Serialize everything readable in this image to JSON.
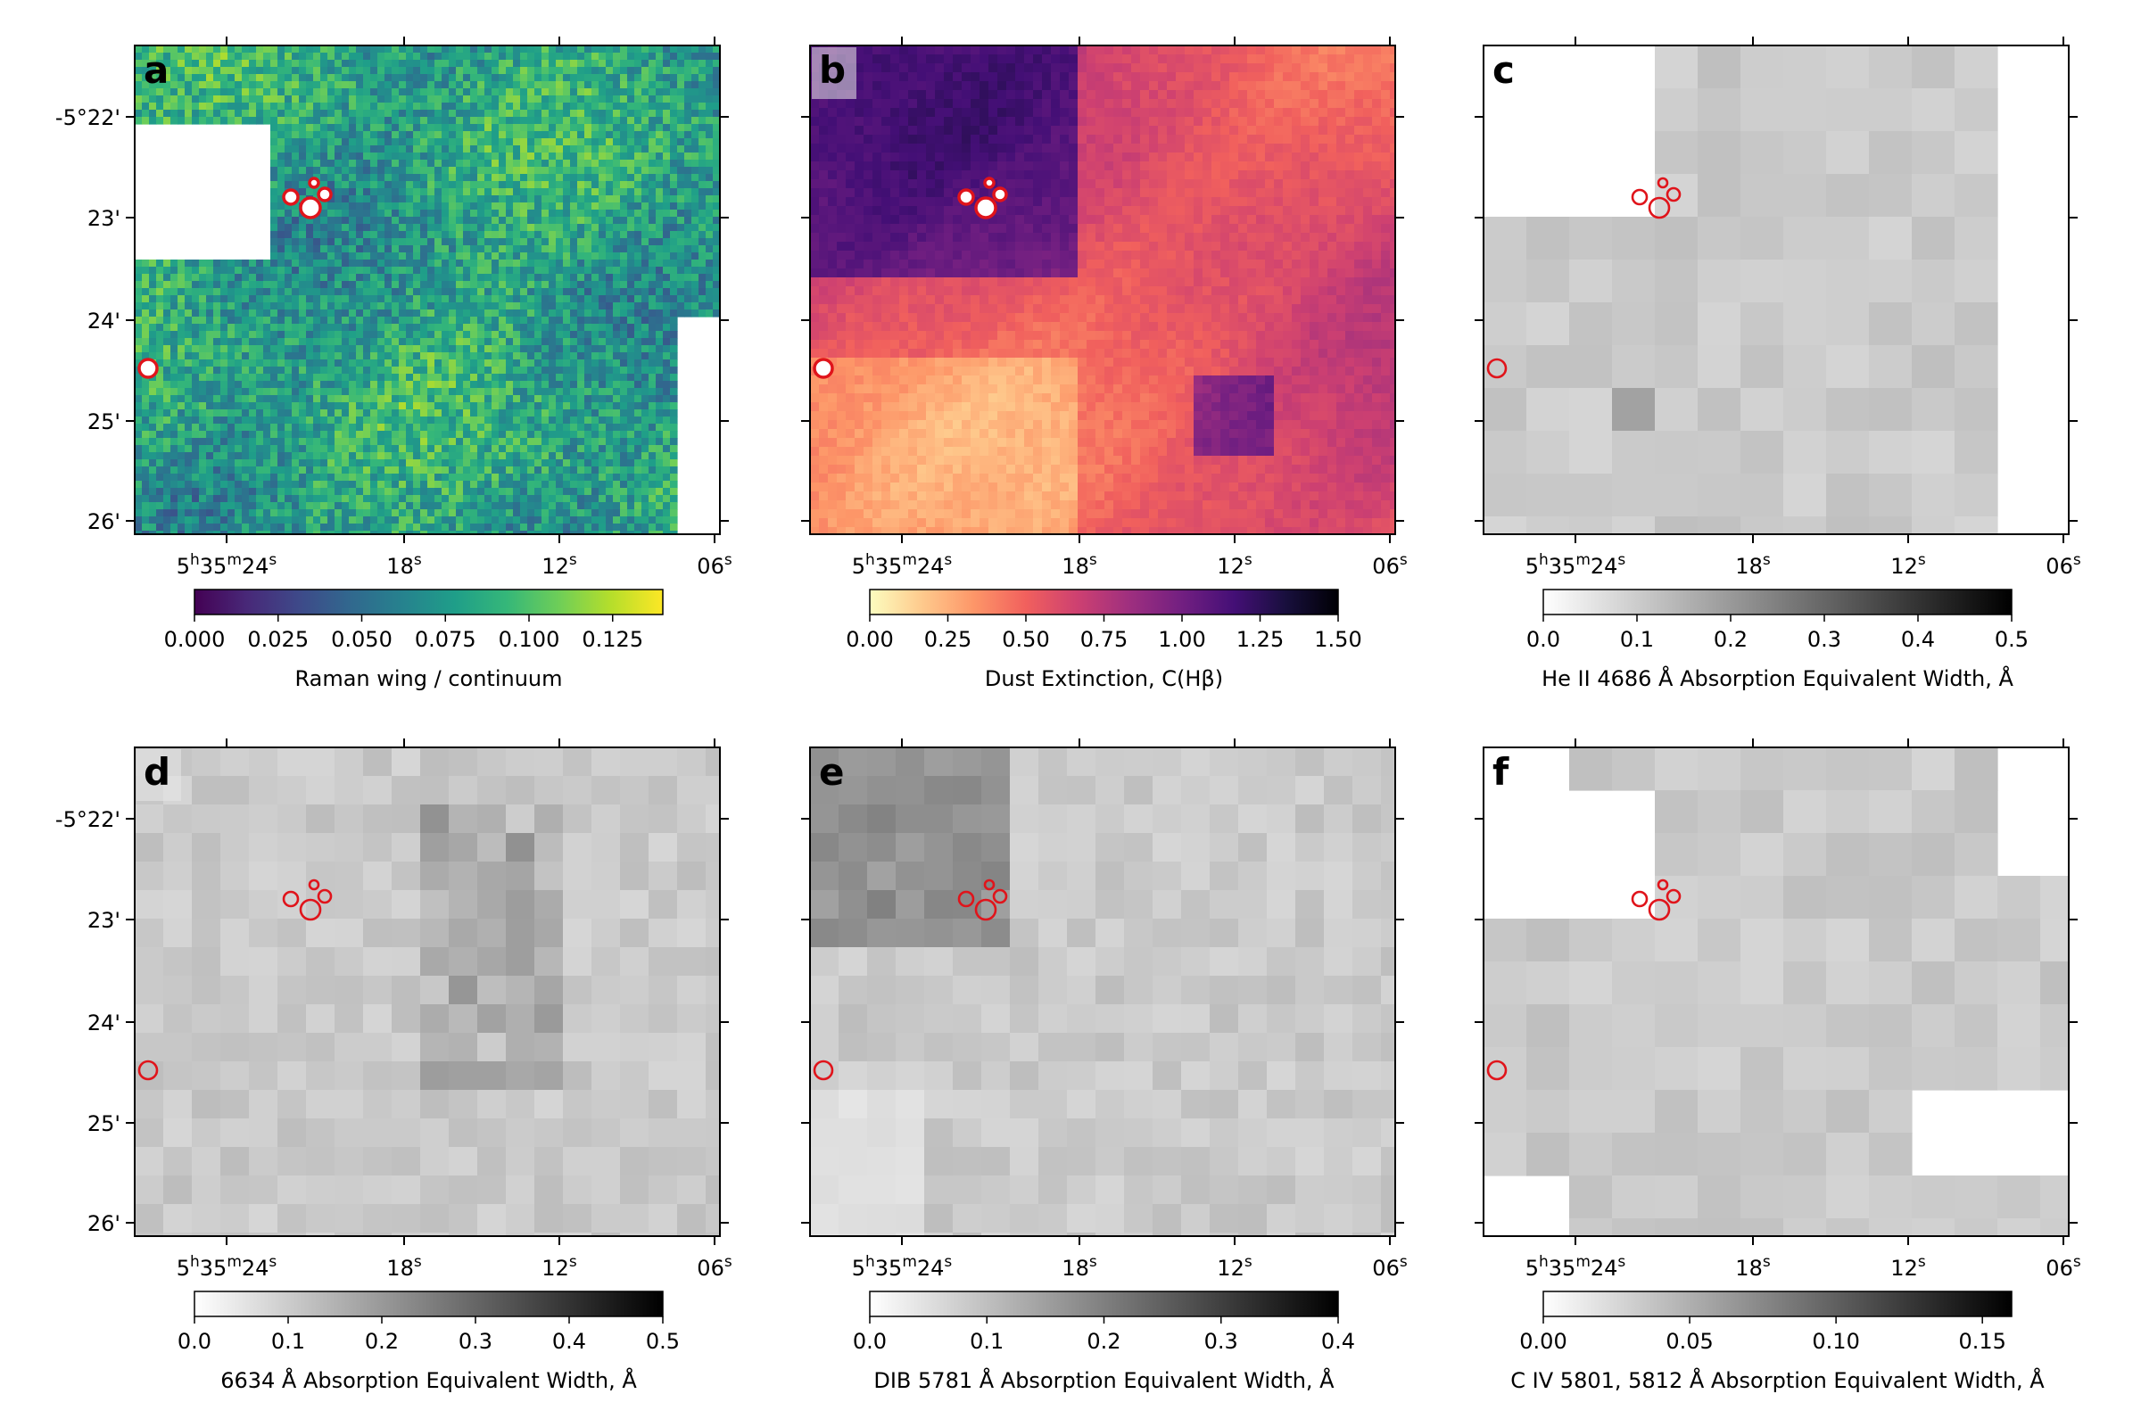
{
  "figure": {
    "type": "multi-panel astronomical maps",
    "rows": 2,
    "cols": 3,
    "panels_order_note": "a-c top row, d-f bottom row"
  },
  "chart_data": [
    {
      "type": "heatmap",
      "panel_label": "a",
      "colormap": "viridis",
      "colorbar_label": "Raman wing / continuum",
      "colorbar_ticks": [
        "0.000",
        "0.025",
        "0.050",
        "0.075",
        "0.100",
        "0.125"
      ],
      "colorbar_range": [
        0,
        0.14
      ],
      "y_ticks": [
        "-5°22'",
        "23'",
        "24'",
        "25'",
        "26'"
      ],
      "x_ticks": [
        "5h35m24s",
        "18s",
        "12s",
        "06s"
      ],
      "texture": "fine",
      "markers": "red circles filled white"
    },
    {
      "type": "heatmap",
      "panel_label": "b",
      "colormap": "magma_r",
      "colorbar_label": "Dust Extinction, C(Hβ)",
      "colorbar_ticks": [
        "0.00",
        "0.25",
        "0.50",
        "0.75",
        "1.00",
        "1.25",
        "1.50"
      ],
      "colorbar_range": [
        0,
        1.5
      ],
      "y_ticks": [
        "-5°22'",
        "23'",
        "24'",
        "25'",
        "26'"
      ],
      "x_ticks": [
        "5h35m24s",
        "18s",
        "12s",
        "06s"
      ],
      "texture": "smooth",
      "markers": "red circles filled white"
    },
    {
      "type": "heatmap",
      "panel_label": "c",
      "colormap": "gray_r",
      "colorbar_label": "He II 4686 Å Absorption Equivalent Width, Å",
      "colorbar_ticks": [
        "0.0",
        "0.1",
        "0.2",
        "0.3",
        "0.4",
        "0.5"
      ],
      "colorbar_range": [
        0,
        0.5
      ],
      "y_ticks": [
        "-5°22'",
        "23'",
        "24'",
        "25'",
        "26'"
      ],
      "x_ticks": [
        "5h35m24s",
        "18s",
        "12s",
        "06s"
      ],
      "texture": "coarse bins",
      "markers": "red open circles"
    },
    {
      "type": "heatmap",
      "panel_label": "d",
      "colormap": "gray_r",
      "colorbar_label": "6634 Å Absorption Equivalent Width, Å",
      "colorbar_ticks": [
        "0.0",
        "0.1",
        "0.2",
        "0.3",
        "0.4",
        "0.5"
      ],
      "colorbar_range": [
        0,
        0.5
      ],
      "y_ticks": [
        "-5°22'",
        "23'",
        "24'",
        "25'",
        "26'"
      ],
      "x_ticks": [
        "5h35m24s",
        "18s",
        "12s",
        "06s"
      ],
      "texture": "mixed bins",
      "markers": "red open circles"
    },
    {
      "type": "heatmap",
      "panel_label": "e",
      "colormap": "gray_r",
      "colorbar_label": "DIB 5781 Å Absorption Equivalent Width, Å",
      "colorbar_ticks": [
        "0.0",
        "0.1",
        "0.2",
        "0.3",
        "0.4"
      ],
      "colorbar_range": [
        0,
        0.4
      ],
      "y_ticks": [
        "-5°22'",
        "23'",
        "24'",
        "25'",
        "26'"
      ],
      "x_ticks": [
        "5h35m24s",
        "18s",
        "12s",
        "06s"
      ],
      "texture": "mixed bins",
      "markers": "red open circles"
    },
    {
      "type": "heatmap",
      "panel_label": "f",
      "colormap": "gray_r",
      "colorbar_label": "C IV 5801, 5812 Å Absorption Equivalent Width, Å",
      "colorbar_ticks": [
        "0.00",
        "0.05",
        "0.10",
        "0.15"
      ],
      "colorbar_range": [
        0,
        0.16
      ],
      "y_ticks": [
        "-5°22'",
        "23'",
        "24'",
        "25'",
        "26'"
      ],
      "x_ticks": [
        "5h35m24s",
        "18s",
        "12s",
        "06s"
      ],
      "texture": "coarse bins",
      "markers": "red open circles"
    }
  ],
  "colors": {
    "marker": "#e0141b",
    "background": "#ffffff",
    "label_box": "#e8e8e8"
  }
}
